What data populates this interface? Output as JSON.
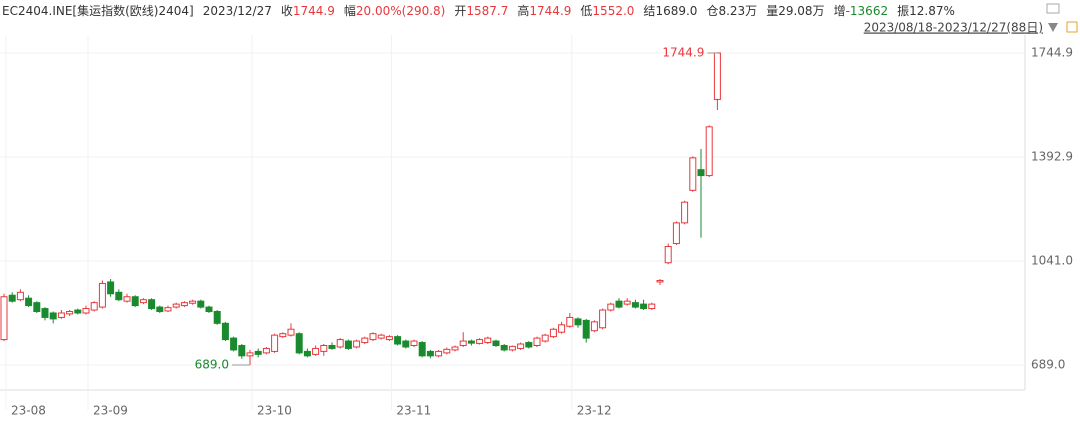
{
  "header": {
    "items": [
      {
        "label": "EC2404.INE[集运指数(欧线)2404]",
        "value": "",
        "color": "#333333"
      },
      {
        "label": "2023/12/27",
        "value": "",
        "color": "#333333"
      },
      {
        "label": "收",
        "value": "1744.9",
        "color": "#e8383d"
      },
      {
        "label": "幅",
        "value": "20.00%(290.8)",
        "color": "#e8383d"
      },
      {
        "label": "开",
        "value": "1587.7",
        "color": "#e8383d"
      },
      {
        "label": "高",
        "value": "1744.9",
        "color": "#e8383d"
      },
      {
        "label": "低",
        "value": "1552.0",
        "color": "#e8383d"
      },
      {
        "label": "结",
        "value": "1689.0",
        "color": "#333333"
      },
      {
        "label": "仓",
        "value": "8.23万",
        "color": "#333333"
      },
      {
        "label": "量",
        "value": "29.08万",
        "color": "#333333"
      },
      {
        "label": "增",
        "value": "-13662",
        "color": "#1a8a2e"
      },
      {
        "label": "振",
        "value": "12.87%",
        "color": "#333333"
      }
    ],
    "range": "2023/08/18-2023/12/27(88日)"
  },
  "chart_data": {
    "type": "candlestick",
    "up_color": "#e8383d",
    "down_color": "#1a8a2e",
    "grid": true,
    "categories": [
      "23-08",
      null,
      null,
      null,
      null,
      null,
      null,
      null,
      null,
      null,
      "23-09",
      null,
      null,
      null,
      null,
      null,
      null,
      null,
      null,
      null,
      null,
      null,
      null,
      null,
      null,
      null,
      null,
      null,
      null,
      null,
      "23-10",
      null,
      null,
      null,
      null,
      null,
      null,
      null,
      null,
      null,
      null,
      null,
      null,
      null,
      null,
      null,
      null,
      "23-11",
      null,
      null,
      null,
      null,
      null,
      null,
      null,
      null,
      null,
      null,
      null,
      null,
      null,
      null,
      null,
      null,
      null,
      null,
      null,
      null,
      null,
      "23-12",
      null,
      null,
      null,
      null,
      null,
      null,
      null,
      null,
      null,
      null,
      null,
      null,
      null,
      null,
      null,
      null,
      null,
      null
    ],
    "open": [
      775,
      925,
      910,
      915,
      900,
      880,
      865,
      850,
      862,
      875,
      865,
      875,
      885,
      970,
      935,
      905,
      920,
      900,
      910,
      885,
      872,
      885,
      890,
      898,
      905,
      885,
      870,
      830,
      780,
      755,
      720,
      735,
      730,
      735,
      785,
      790,
      795,
      735,
      725,
      735,
      755,
      750,
      770,
      750,
      765,
      775,
      780,
      775,
      785,
      770,
      755,
      765,
      735,
      720,
      730,
      740,
      755,
      770,
      762,
      765,
      770,
      755,
      740,
      745,
      765,
      755,
      770,
      785,
      800,
      820,
      845,
      840,
      805,
      815,
      875,
      905,
      895,
      900,
      895,
      880,
      970,
      1035,
      1100,
      1170,
      1280,
      1350,
      1330,
      1587.7
    ],
    "high": [
      930,
      935,
      945,
      925,
      905,
      885,
      870,
      875,
      875,
      880,
      890,
      905,
      975,
      980,
      945,
      930,
      925,
      915,
      915,
      890,
      890,
      900,
      905,
      910,
      910,
      890,
      875,
      835,
      785,
      760,
      740,
      745,
      750,
      795,
      800,
      830,
      800,
      745,
      755,
      760,
      765,
      780,
      775,
      775,
      785,
      800,
      795,
      790,
      790,
      775,
      775,
      770,
      740,
      740,
      748,
      755,
      800,
      775,
      780,
      785,
      775,
      760,
      755,
      765,
      770,
      785,
      795,
      815,
      835,
      865,
      850,
      845,
      840,
      880,
      900,
      915,
      915,
      910,
      910,
      900,
      980,
      1100,
      1175,
      1245,
      1395,
      1420,
      1500,
      1744.9
    ],
    "low": [
      770,
      900,
      905,
      885,
      865,
      840,
      830,
      845,
      855,
      860,
      860,
      870,
      880,
      920,
      905,
      900,
      885,
      895,
      875,
      865,
      868,
      880,
      885,
      893,
      880,
      865,
      825,
      770,
      735,
      710,
      689,
      715,
      725,
      730,
      780,
      785,
      725,
      715,
      720,
      720,
      740,
      745,
      740,
      745,
      760,
      770,
      775,
      770,
      755,
      745,
      750,
      715,
      712,
      715,
      725,
      735,
      750,
      755,
      758,
      760,
      750,
      735,
      735,
      740,
      745,
      750,
      765,
      780,
      795,
      815,
      815,
      765,
      800,
      810,
      870,
      880,
      890,
      880,
      875,
      875,
      960,
      1030,
      1095,
      1165,
      1275,
      1120,
      1325,
      1552
    ],
    "close": [
      920,
      905,
      935,
      890,
      870,
      850,
      845,
      865,
      870,
      865,
      880,
      900,
      965,
      930,
      910,
      920,
      890,
      910,
      880,
      870,
      883,
      895,
      900,
      905,
      885,
      870,
      830,
      775,
      740,
      720,
      730,
      725,
      745,
      790,
      795,
      810,
      730,
      720,
      745,
      755,
      745,
      775,
      745,
      770,
      780,
      795,
      790,
      785,
      760,
      750,
      770,
      720,
      720,
      735,
      742,
      750,
      770,
      763,
      775,
      780,
      755,
      740,
      752,
      760,
      750,
      780,
      790,
      810,
      825,
      850,
      825,
      780,
      835,
      875,
      895,
      885,
      905,
      885,
      880,
      895,
      975,
      1090,
      1170,
      1240,
      1390,
      1330,
      1495,
      1744.9
    ],
    "ylim": [
      604.4,
      1805.7
    ],
    "yticks": [
      {
        "value": 689,
        "label": "689.0"
      },
      {
        "value": 1041,
        "label": "1041.0"
      },
      {
        "value": 1392.9,
        "label": "1392.9"
      },
      {
        "value": 1744.9,
        "label": "1744.9"
      }
    ],
    "annotations": [
      {
        "value": 1744.9,
        "label": "1744.9",
        "color": "#e8383d"
      },
      {
        "value": 689,
        "label": "689.0",
        "color": "#1a8a2e"
      }
    ]
  }
}
